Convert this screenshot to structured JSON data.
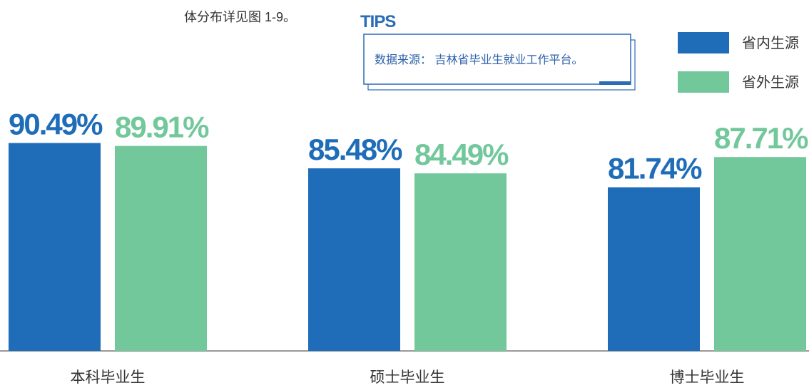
{
  "header": {
    "text": "体分布详见图 1-9。"
  },
  "tips": {
    "label": "TIPS",
    "text": "数据来源： 吉林省毕业生就业工作平台。"
  },
  "chart_data": {
    "type": "bar",
    "categories": [
      "本科毕业生",
      "硕士毕业生",
      "博士毕业生"
    ],
    "series": [
      {
        "name": "省内生源",
        "color": "#1f6db8",
        "values": [
          90.49,
          85.48,
          81.74
        ],
        "value_labels": [
          "90.49%",
          "85.48%",
          "81.74%"
        ]
      },
      {
        "name": "省外生源",
        "color": "#72c89b",
        "values": [
          89.91,
          84.49,
          87.71
        ],
        "value_labels": [
          "89.91%",
          "84.49%",
          "87.71%"
        ]
      }
    ],
    "ylim": [
      49.4,
      100
    ],
    "legend": "top-right"
  }
}
